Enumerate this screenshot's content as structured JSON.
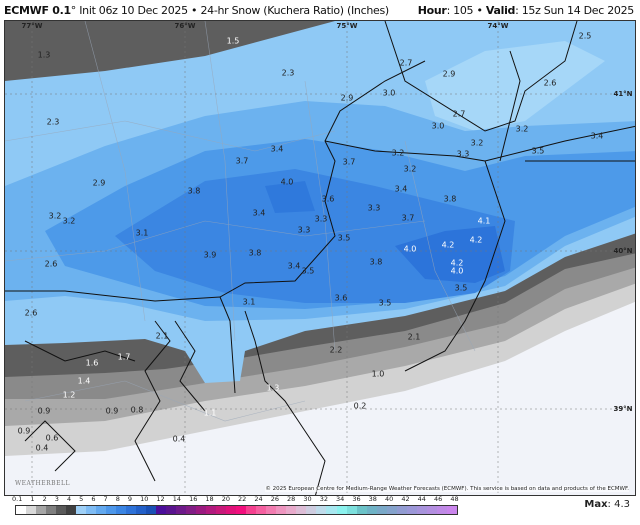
{
  "header": {
    "model": "ECMWF 0.1",
    "degree": "°",
    "init": "Init 06z 10 Dec 2025",
    "sep": "•",
    "product": "24-hr Snow (Kuchera Ratio) (Inches)",
    "hour_label": "Hour",
    "hour_value": ": 105",
    "valid_label": "Valid",
    "valid_value": ": 15z Sun 14 Dec 2025"
  },
  "grid_labels": {
    "lon": [
      "77°W",
      "76°W",
      "75°W",
      "74°W"
    ],
    "lat": [
      "41°N",
      "40°N",
      "39°N"
    ]
  },
  "map_values": [
    "1.3",
    "1.5",
    "2.3",
    "2.7",
    "2.9",
    "2.5",
    "2.6",
    "2.3",
    "2.9",
    "3.0",
    "2.7",
    "3.0",
    "3.2",
    "3.3",
    "3.2",
    "3.4",
    "3.5",
    "3.4",
    "3.7",
    "3.7",
    "3.2",
    "3.2",
    "2.9",
    "3.8",
    "4.0",
    "3.4",
    "3.8",
    "3.6",
    "3.3",
    "3.2",
    "3.2",
    "3.4",
    "3.3",
    "3.7",
    "4.1",
    "3.1",
    "3.3",
    "3.5",
    "4.0",
    "4.2",
    "4.2",
    "3.8",
    "3.9",
    "3.8",
    "4.2",
    "4.0",
    "2.6",
    "3.4",
    "3.5",
    "3.5",
    "3.6",
    "3.5",
    "3.1",
    "2.6",
    "2.1",
    "2.1",
    "2.2",
    "1.6",
    "1.7",
    "1.4",
    "1.2",
    "1.3",
    "1.0",
    "0.9",
    "0.9",
    "0.8",
    "1.1",
    "0.2",
    "0.9",
    "0.6",
    "0.4",
    "0.4"
  ],
  "copyright": "© 2025 European Centre for Medium-Range Weather Forecasts (ECMWF). This service is based on data and products of the ECMWF.",
  "logo": "WeatherBELL",
  "colorbar": {
    "labels": [
      "0.1",
      "1",
      "2",
      "3",
      "4",
      "5",
      "6",
      "7",
      "8",
      "9",
      "10",
      "12",
      "14",
      "16",
      "18",
      "20",
      "22",
      "24",
      "26",
      "28",
      "30",
      "32",
      "34",
      "36",
      "38",
      "40",
      "42",
      "44",
      "46",
      "48"
    ],
    "colors": [
      "#ffffff",
      "#d9d9d9",
      "#a6a6a6",
      "#7f7f7f",
      "#5a5a5a",
      "#404040",
      "#9fd0f7",
      "#7fbcf4",
      "#63a9ef",
      "#4d97ea",
      "#3b85e3",
      "#2e72d8",
      "#2360c8",
      "#1a50b5",
      "#4b0f9b",
      "#5a148f",
      "#6e1a8a",
      "#821d85",
      "#9b1a80",
      "#b21a7e",
      "#c8197a",
      "#e0127a",
      "#f20f7d",
      "#f5408f",
      "#f560a0",
      "#f27cb0",
      "#ee95bf",
      "#e8aacb",
      "#ddbdd6",
      "#cfcde0",
      "#c0dceb",
      "#a8e8f0",
      "#8cf2ee",
      "#7de0dd",
      "#6cc3c8",
      "#6fb3c6",
      "#7aa9c8",
      "#85a3cc",
      "#929cd2",
      "#9c98d8",
      "#a894dc",
      "#b38fe0",
      "#bf8ae6",
      "#ca85ec"
    ]
  },
  "max": {
    "label": "Max",
    "value": ": 4.3"
  }
}
